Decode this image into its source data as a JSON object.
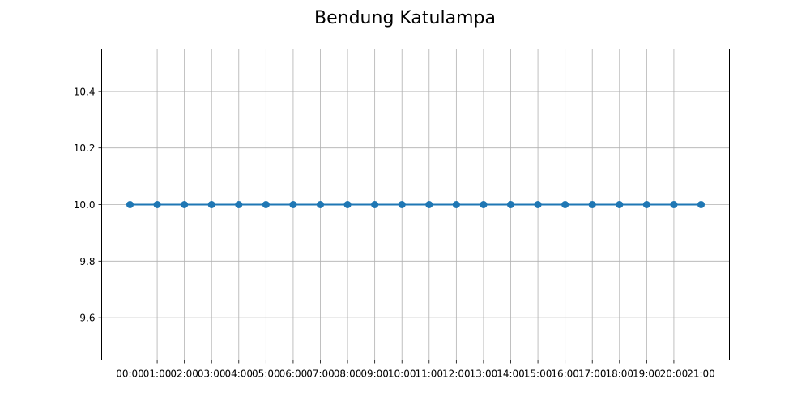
{
  "chart_data": {
    "type": "line",
    "title": "Bendung Katulampa",
    "xlabel": "",
    "ylabel": "",
    "categories": [
      "00:00",
      "01:00",
      "02:00",
      "03:00",
      "04:00",
      "05:00",
      "06:00",
      "07:00",
      "08:00",
      "09:00",
      "10:00",
      "11:00",
      "12:00",
      "13:00",
      "14:00",
      "15:00",
      "16:00",
      "17:00",
      "18:00",
      "19:00",
      "20:00",
      "21:00"
    ],
    "series": [
      {
        "values": [
          10.0,
          10.0,
          10.0,
          10.0,
          10.0,
          10.0,
          10.0,
          10.0,
          10.0,
          10.0,
          10.0,
          10.0,
          10.0,
          10.0,
          10.0,
          10.0,
          10.0,
          10.0,
          10.0,
          10.0,
          10.0,
          10.0
        ],
        "color": "#1f77b4",
        "marker": "circle"
      }
    ],
    "ylim": [
      9.45,
      10.55
    ],
    "yticks": [
      9.6,
      9.8,
      10.0,
      10.2,
      10.4
    ],
    "ytick_labels": [
      "9.6",
      "9.8",
      "10.0",
      "10.2",
      "10.4"
    ],
    "grid": true
  }
}
